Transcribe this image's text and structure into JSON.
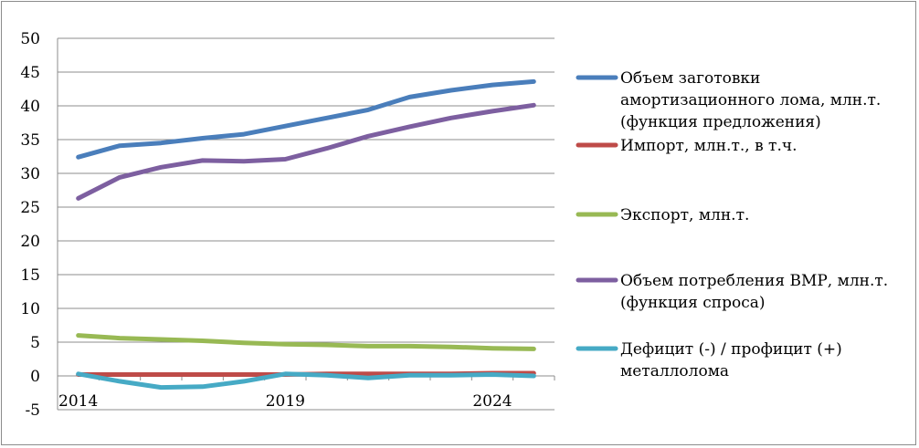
{
  "chart_data": {
    "type": "line",
    "title": "",
    "xlabel": "",
    "ylabel": "",
    "x": [
      2014,
      2015,
      2016,
      2017,
      2018,
      2019,
      2020,
      2021,
      2022,
      2023,
      2024,
      2025
    ],
    "x_tick_labels": [
      "2014",
      "2019",
      "2024"
    ],
    "y_tick_labels": [
      "-5",
      "0",
      "5",
      "10",
      "15",
      "20",
      "25",
      "30",
      "35",
      "40",
      "45",
      "50"
    ],
    "ylim": [
      -5,
      50
    ],
    "grid": "horizontal",
    "legend_position": "right",
    "series": [
      {
        "name_lines": [
          "Объем заготовки",
          "амортизационного лома, млн.т.",
          "(функция предложения)"
        ],
        "color": "#4a7ebb",
        "values": [
          32.4,
          34.1,
          34.5,
          35.2,
          35.8,
          37.0,
          38.2,
          39.4,
          41.3,
          42.3,
          43.1,
          43.6
        ]
      },
      {
        "name_lines": [
          "Импорт, млн.т., в т.ч."
        ],
        "color": "#be4b48",
        "values": [
          0.2,
          0.2,
          0.2,
          0.2,
          0.2,
          0.2,
          0.3,
          0.3,
          0.3,
          0.3,
          0.4,
          0.4
        ]
      },
      {
        "name_lines": [
          "Экспорт, млн.т."
        ],
        "color": "#98b954",
        "values": [
          6.0,
          5.6,
          5.4,
          5.2,
          4.9,
          4.7,
          4.6,
          4.4,
          4.4,
          4.3,
          4.1,
          4.0
        ]
      },
      {
        "name_lines": [
          "Объем потребления ВМР, млн.т.",
          "(функция спроса)"
        ],
        "color": "#7d5fa0",
        "values": [
          26.3,
          29.4,
          30.9,
          31.9,
          31.8,
          32.1,
          33.7,
          35.5,
          36.9,
          38.2,
          39.2,
          40.1
        ]
      },
      {
        "name_lines": [
          "Дефицит (-) / профицит (+)",
          "металлолома"
        ],
        "color": "#46aac5",
        "values": [
          0.3,
          -0.8,
          -1.7,
          -1.6,
          -0.8,
          0.3,
          0.1,
          -0.3,
          0.1,
          0.1,
          0.2,
          0.0
        ]
      }
    ]
  }
}
